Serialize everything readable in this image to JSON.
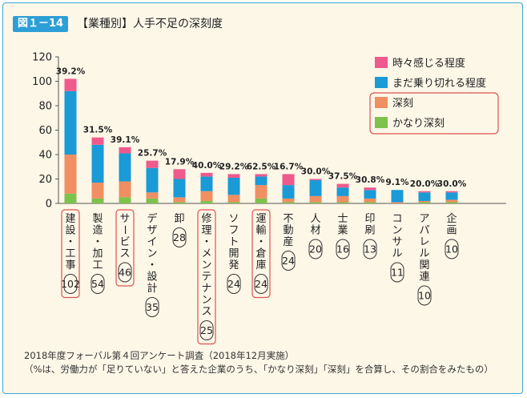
{
  "header": {
    "badge": "図１－14",
    "title": "【業種別】人手不足の深刻度"
  },
  "footnote": {
    "line1": "2018年度フォーバル第４回アンケート調査（2018年12月実施）",
    "line2": "（%は、労働力が「足りていない」と答えた企業のうち、「かなり深刻」「深刻」を合算し、その割合をみたもの）"
  },
  "colors": {
    "kanari": "#7cc24c",
    "shinkoku": "#ef8f62",
    "madanori": "#1a9ad6",
    "tokidoki": "#ee5a8c",
    "highlight": "#e0514f"
  },
  "chart_data": {
    "type": "bar",
    "stacked": true,
    "title": "",
    "xlabel": "",
    "ylabel": "",
    "ylim": [
      0,
      120
    ],
    "yticks": [
      0,
      20,
      40,
      60,
      80,
      100,
      120
    ],
    "legend_position": "top-right",
    "categories": [
      "建設・工事",
      "製造・加工",
      "サービス",
      "デザイン・設計",
      "卸",
      "修理・メンテナンス",
      "ソフト開発",
      "運輸・倉庫",
      "不動産",
      "人材",
      "士業",
      "印刷",
      "コンサル",
      "アパレル関連",
      "企画"
    ],
    "counts": [
      "102",
      "54",
      "46",
      "35",
      "28",
      "25",
      "24",
      "24",
      "24",
      "20",
      "16",
      "13",
      "11",
      "10",
      "10"
    ],
    "highlighted": [
      true,
      false,
      true,
      false,
      false,
      true,
      false,
      true,
      false,
      false,
      false,
      false,
      false,
      false,
      false
    ],
    "percent_labels": [
      "39.2%",
      "31.5%",
      "39.1%",
      "25.7%",
      "17.9%",
      "40.0%",
      "29.2%",
      "62.5%",
      "16.7%",
      "30.0%",
      "37.5%",
      "30.8%",
      "9.1%",
      "20.0%",
      "30.0%"
    ],
    "series": [
      {
        "name": "かなり深刻",
        "color_key": "kanari",
        "values": [
          8,
          4,
          5,
          4,
          1,
          2,
          1,
          4,
          1,
          1,
          1,
          1,
          0,
          1,
          1
        ]
      },
      {
        "name": "深刻",
        "color_key": "shinkoku",
        "values": [
          32,
          13,
          13,
          5,
          4,
          8,
          6,
          11,
          3,
          5,
          5,
          3,
          1,
          1,
          2
        ]
      },
      {
        "name": "まだ乗り切れる程度",
        "color_key": "madanori",
        "values": [
          52,
          31,
          23,
          20,
          15,
          12,
          14,
          7,
          11,
          13,
          7,
          7,
          10,
          7,
          6
        ]
      },
      {
        "name": "時々感じる程度",
        "color_key": "tokidoki",
        "values": [
          10,
          6,
          5,
          6,
          8,
          3,
          3,
          2,
          9,
          1,
          3,
          2,
          0,
          1,
          1
        ]
      }
    ]
  }
}
